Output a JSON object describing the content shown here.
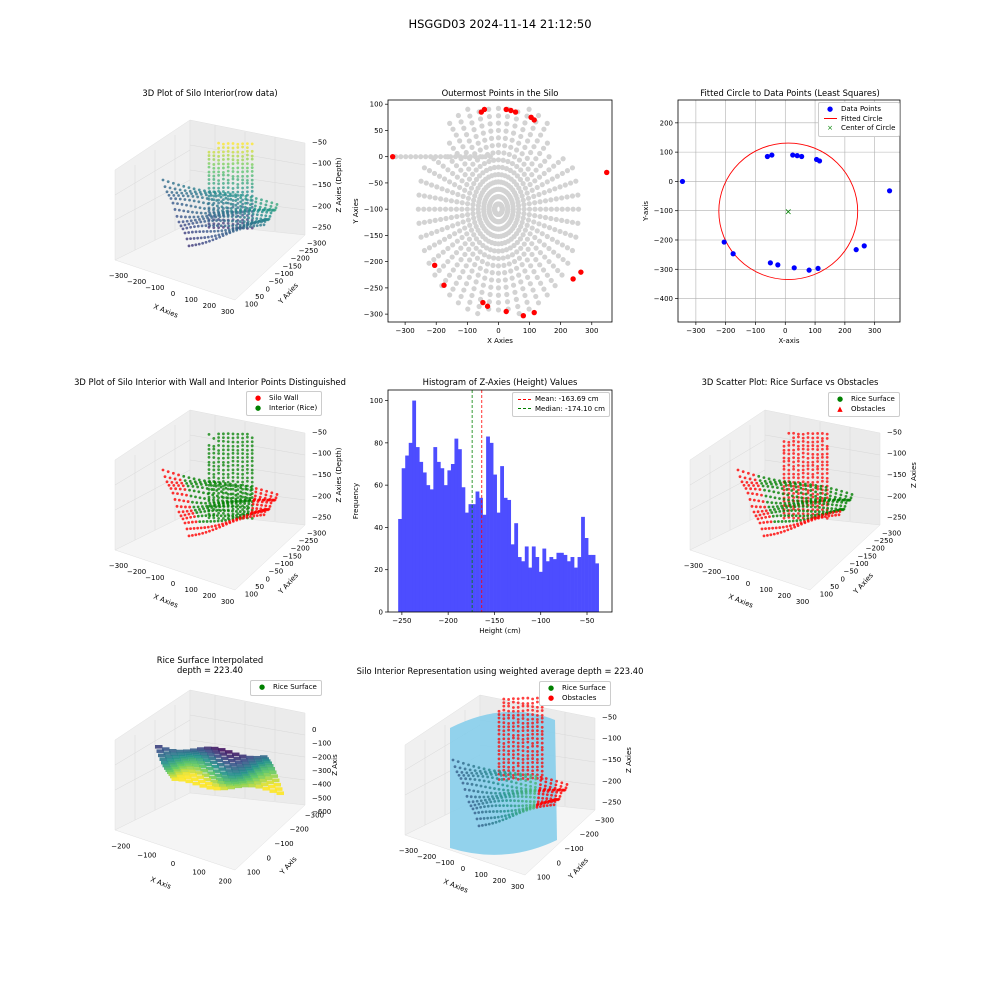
{
  "suptitle": "HSGGD03 2024-11-14 21:12:50",
  "colors": {
    "red": "#ff0000",
    "green": "#008000",
    "blue": "#0000ff",
    "gray": "#d3d3d3",
    "hist": "#4d4dff",
    "skyblue": "#87ceeb"
  },
  "chart_data": [
    {
      "id": "raw3d",
      "type": "scatter",
      "title": "3D Plot of Silo Interior(row data)",
      "xlabel": "X Axies",
      "ylabel": "Y Axies",
      "zlabel": "Z Axies (Depth)",
      "xticks": [
        "−300",
        "−200",
        "−100",
        "0",
        "100",
        "200",
        "300"
      ],
      "yticks": [
        "100",
        "50",
        "0",
        "−50",
        "−100",
        "−150",
        "−200",
        "−250",
        "−300"
      ],
      "zticks": [
        "−50",
        "−100",
        "−150",
        "−200",
        "−250"
      ],
      "colormap": "viridis"
    },
    {
      "id": "outer",
      "type": "scatter",
      "title": "Outermost Points in the Silo",
      "xlabel": "X Axies",
      "ylabel": "Y Axies",
      "xlim": [
        -355,
        365
      ],
      "ylim": [
        -315,
        108
      ],
      "xticks": [
        -300,
        -200,
        -100,
        0,
        100,
        200,
        300
      ],
      "yticks": [
        100,
        50,
        0,
        -50,
        -100,
        -150,
        -200,
        -250,
        -300
      ],
      "outermost_points": [
        {
          "x": -340,
          "y": 0
        },
        {
          "x": -55,
          "y": 85
        },
        {
          "x": -45,
          "y": 90
        },
        {
          "x": 25,
          "y": 90
        },
        {
          "x": 40,
          "y": 88
        },
        {
          "x": 55,
          "y": 85
        },
        {
          "x": 105,
          "y": 75
        },
        {
          "x": 115,
          "y": 70
        },
        {
          "x": 348,
          "y": -30
        },
        {
          "x": -205,
          "y": -207
        },
        {
          "x": -175,
          "y": -245
        },
        {
          "x": -50,
          "y": -278
        },
        {
          "x": -35,
          "y": -285
        },
        {
          "x": 25,
          "y": -295
        },
        {
          "x": 80,
          "y": -303
        },
        {
          "x": 115,
          "y": -297
        },
        {
          "x": 240,
          "y": -233
        },
        {
          "x": 265,
          "y": -220
        }
      ]
    },
    {
      "id": "circle",
      "type": "scatter",
      "title": "Fitted Circle to Data Points (Least Squares)",
      "xlabel": "X-axis",
      "ylabel": "Y-axis",
      "xlim": [
        -360,
        385
      ],
      "ylim": [
        -480,
        278
      ],
      "xticks": [
        -300,
        -200,
        -100,
        0,
        100,
        200,
        300
      ],
      "yticks": [
        200,
        100,
        0,
        -100,
        -200,
        -300,
        -400
      ],
      "grid": true,
      "legend": [
        "Data Points",
        "Fitted Circle",
        "Center of Circle"
      ],
      "legend_position": "top-right",
      "center": {
        "x": 10,
        "y": -102
      },
      "radius": 233,
      "points": [
        {
          "x": -345,
          "y": 0
        },
        {
          "x": -60,
          "y": 85
        },
        {
          "x": -45,
          "y": 90
        },
        {
          "x": 25,
          "y": 90
        },
        {
          "x": 40,
          "y": 88
        },
        {
          "x": 55,
          "y": 85
        },
        {
          "x": 105,
          "y": 75
        },
        {
          "x": 115,
          "y": 70
        },
        {
          "x": 350,
          "y": -32
        },
        {
          "x": -205,
          "y": -207
        },
        {
          "x": -175,
          "y": -247
        },
        {
          "x": -50,
          "y": -278
        },
        {
          "x": -25,
          "y": -285
        },
        {
          "x": 30,
          "y": -295
        },
        {
          "x": 80,
          "y": -303
        },
        {
          "x": 110,
          "y": -297
        },
        {
          "x": 238,
          "y": -233
        },
        {
          "x": 265,
          "y": -220
        }
      ]
    },
    {
      "id": "wall3d",
      "type": "scatter",
      "title": "3D Plot of Silo Interior with Wall and Interior Points Distinguished",
      "xlabel": "X Axies",
      "ylabel": "Y Axies",
      "zlabel": "Z Axies (Depth)",
      "legend": [
        "Silo Wall",
        "Interior (Rice)"
      ],
      "legend_position": "top-right",
      "xticks": [
        "−300",
        "−200",
        "−100",
        "0",
        "100",
        "200",
        "300"
      ],
      "yticks": [
        "100",
        "50",
        "0",
        "−50",
        "−100",
        "−150",
        "−200",
        "−250",
        "−300"
      ],
      "zticks": [
        "−50",
        "−100",
        "−150",
        "−200",
        "−250"
      ]
    },
    {
      "id": "hist",
      "type": "bar",
      "title": "Histogram of Z-Axies (Height) Values",
      "xlabel": "Height (cm)",
      "ylabel": "Frequency",
      "xlim": [
        -265,
        -23
      ],
      "ylim": [
        0,
        105
      ],
      "xticks": [
        -250,
        -200,
        -150,
        -100,
        -50
      ],
      "yticks": [
        0,
        20,
        40,
        60,
        80,
        100
      ],
      "bin_start": -254,
      "bin_width": 3.8,
      "values": [
        44,
        68,
        74,
        80,
        100,
        78,
        71,
        66,
        60,
        58,
        78,
        71,
        68,
        60,
        67,
        70,
        82,
        77,
        59,
        47,
        51,
        51,
        57,
        54,
        46,
        83,
        80,
        65,
        47,
        69,
        54,
        53,
        32,
        42,
        26,
        24,
        31,
        21,
        31,
        26,
        19,
        30,
        24,
        26,
        25,
        28,
        28,
        27,
        24,
        26,
        21,
        26,
        45,
        35,
        27,
        27,
        23
      ],
      "mean": -163.69,
      "median": -174.1,
      "legend": [
        "Mean: -163.69 cm",
        "Median: -174.10 cm"
      ],
      "legend_position": "top-right"
    },
    {
      "id": "rice3d",
      "type": "scatter",
      "title": "3D Scatter Plot: Rice Surface vs Obstacles",
      "xlabel": "X Axies",
      "ylabel": "Y Axies",
      "zlabel": "Z Axies",
      "legend": [
        "Rice Surface",
        "Obstacles"
      ],
      "legend_position": "top-right",
      "xticks": [
        "−300",
        "−200",
        "−100",
        "0",
        "100",
        "200",
        "300"
      ],
      "yticks": [
        "100",
        "50",
        "0",
        "−50",
        "−100",
        "−150",
        "−200",
        "−250",
        "−300"
      ],
      "zticks": [
        "−50",
        "−100",
        "−150",
        "−200",
        "−250"
      ]
    },
    {
      "id": "interp3d",
      "type": "area",
      "title": "Rice Surface Interpolated\ndepth = 223.40",
      "title_line1": "Rice Surface Interpolated",
      "title_line2": "depth = 223.40",
      "xlabel": "X Axis",
      "ylabel": "Y Axis",
      "zlabel": "Z Axis",
      "legend": [
        "Rice Surface"
      ],
      "legend_position": "top-right",
      "xticks": [
        "−200",
        "−100",
        "0",
        "100",
        "200"
      ],
      "yticks": [
        "100",
        "0",
        "−100",
        "−200",
        "−300"
      ],
      "zticks": [
        "0",
        "−100",
        "−200",
        "−300",
        "−400",
        "−500",
        "−600"
      ],
      "colormap": "viridis"
    },
    {
      "id": "silo3d",
      "type": "scatter",
      "title": "Silo Interior Representation using weighted average depth = 223.40",
      "xlabel": "X Axies",
      "ylabel": "Y Axies",
      "zlabel": "Z Axies",
      "legend": [
        "Rice Surface",
        "Obstacles"
      ],
      "legend_position": "top-right",
      "xticks": [
        "−300",
        "−200",
        "−100",
        "0",
        "100",
        "200",
        "300"
      ],
      "yticks": [
        "100",
        "0",
        "−100",
        "−200",
        "−300"
      ],
      "zticks": [
        "−50",
        "−100",
        "−150",
        "−200",
        "−250"
      ]
    }
  ]
}
